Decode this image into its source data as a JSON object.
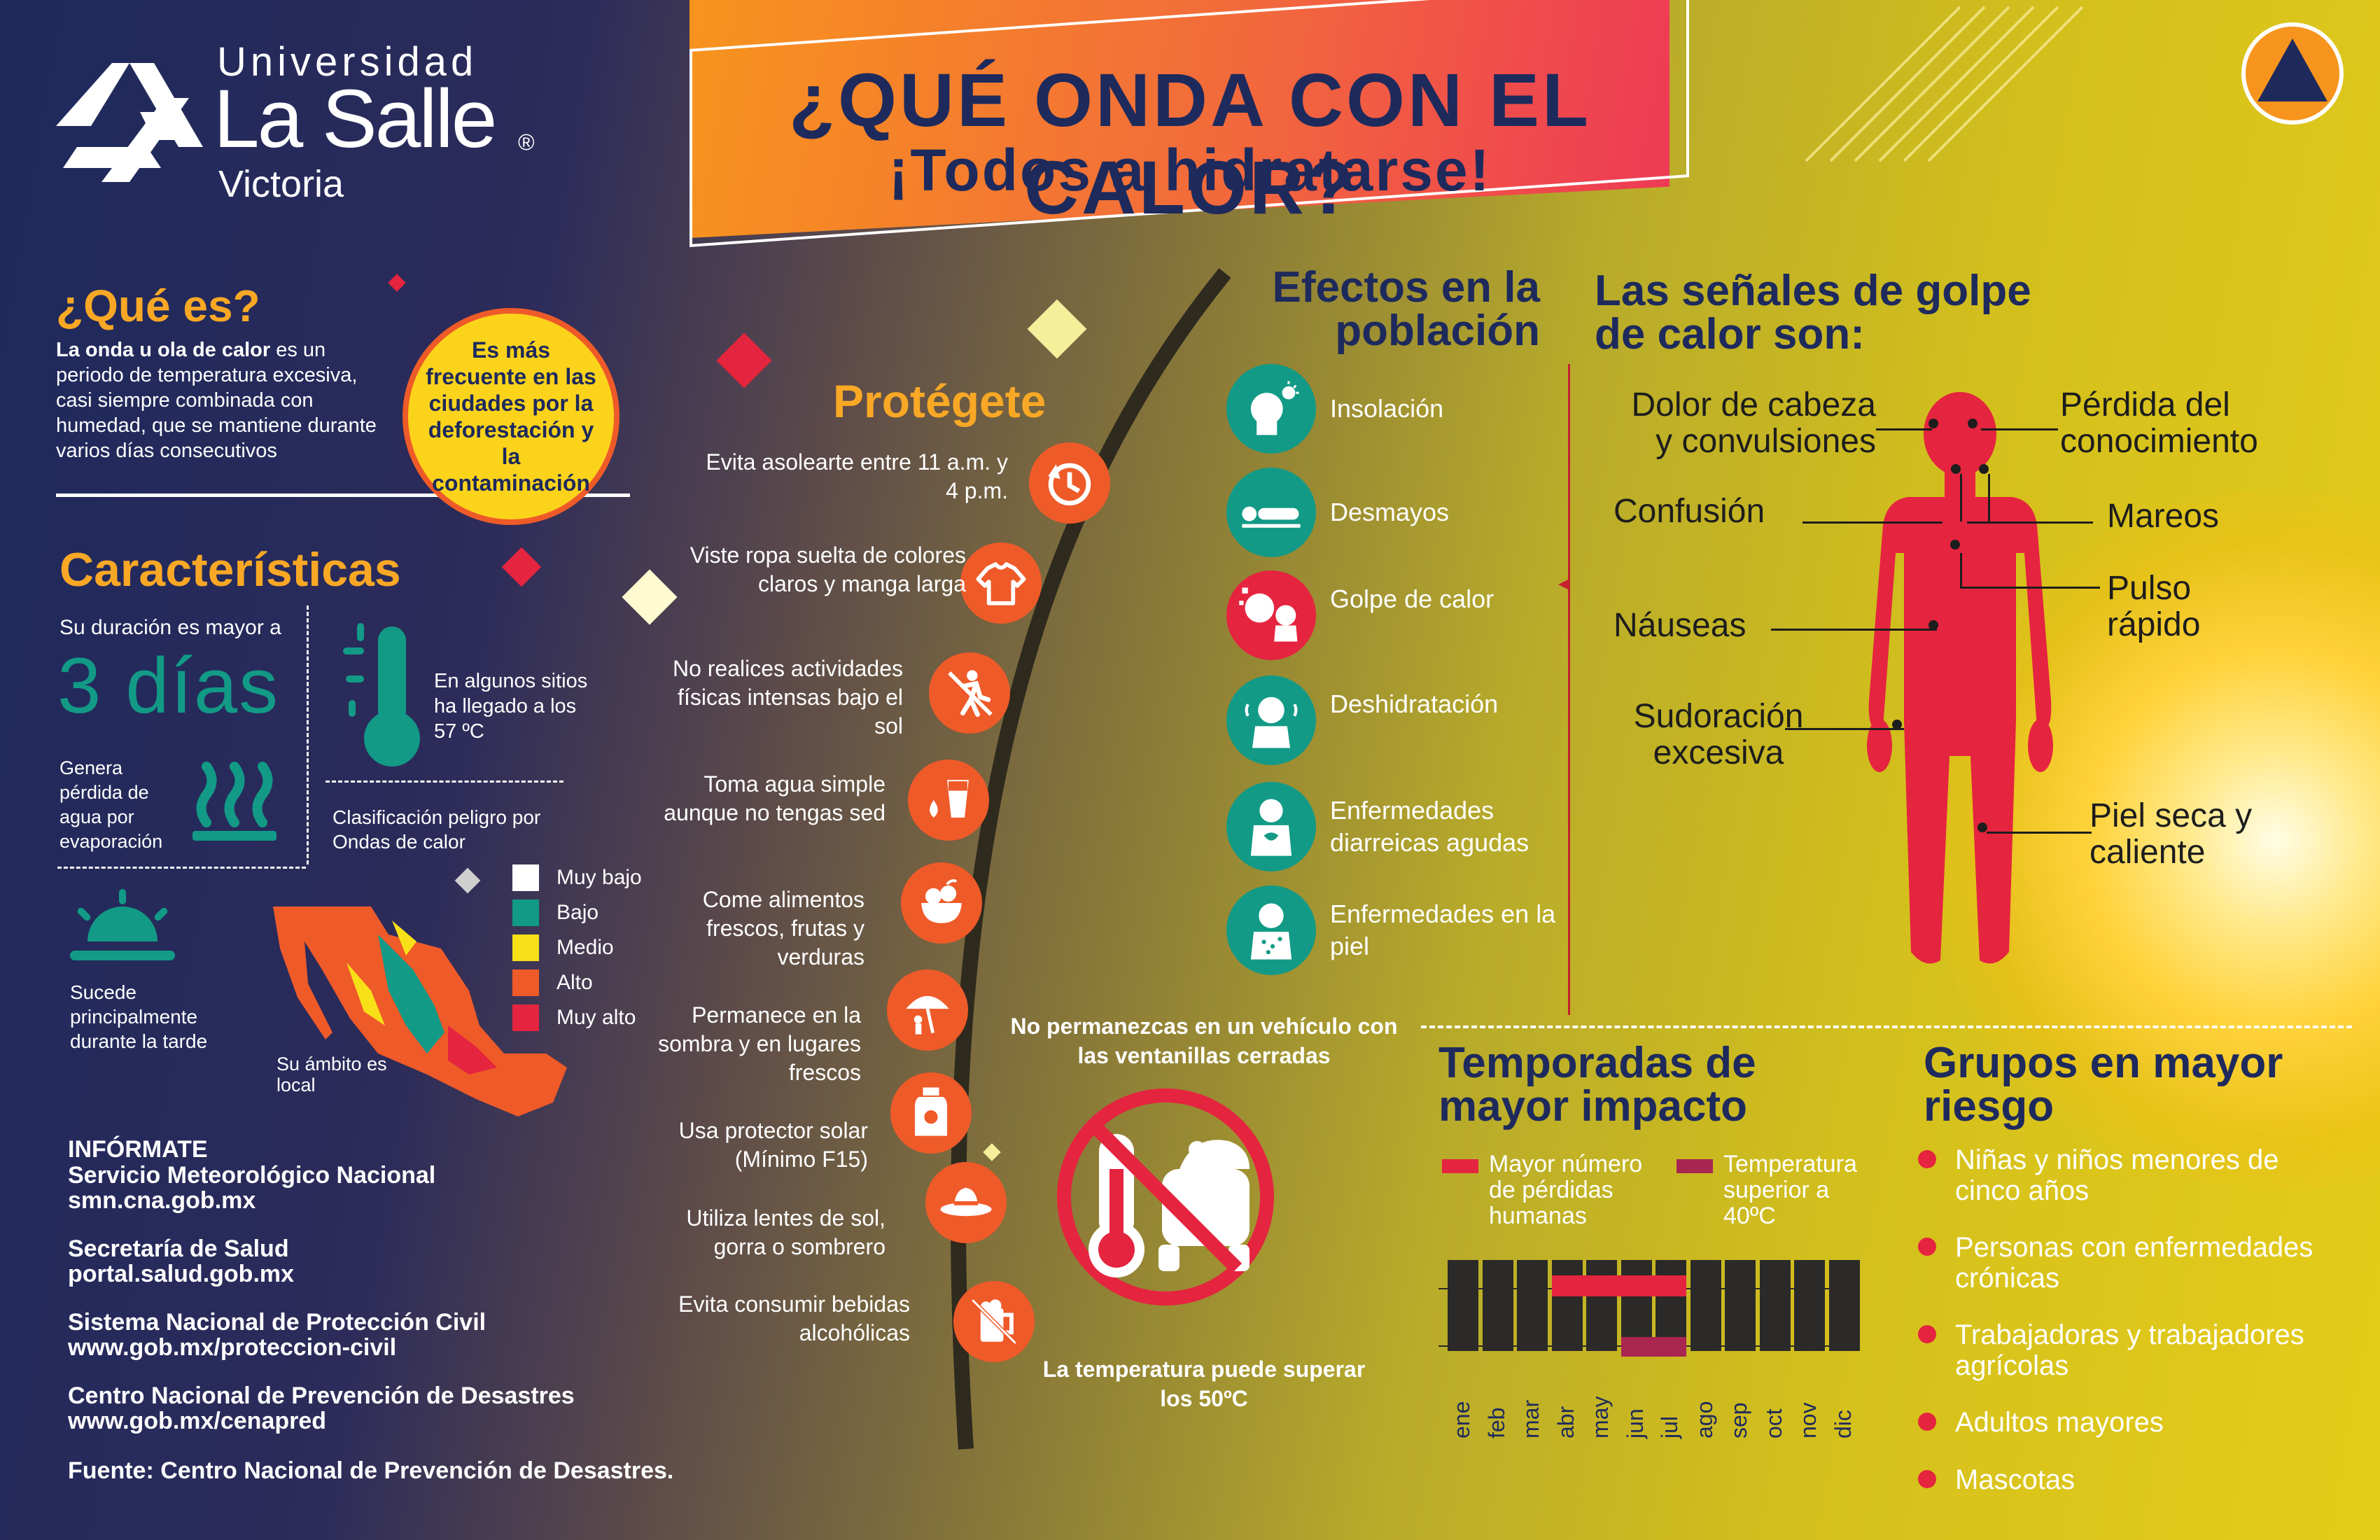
{
  "brand": {
    "line1": "Universidad",
    "line2": "La Salle",
    "reg": "®",
    "line3": "Victoria"
  },
  "title": {
    "main": "¿QUÉ ONDA CON EL CALOR?",
    "sub": "¡Todos a hidratarse!"
  },
  "que_es": {
    "heading": "¿Qué es?",
    "bold_lead": "La onda u ola de calor",
    "text": " es un periodo de temperatura excesiva, casi siempre combinada con humedad, que se mantiene durante varios días consecutivos",
    "bubble": "Es más frecuente en las ciudades por la deforestación y la contaminación"
  },
  "caracteristicas": {
    "heading": "Características",
    "duration_label": "Su duración es mayor a",
    "duration_value": "3 días",
    "temp_text": "En algunos sitios ha llegado a los 57 ºC",
    "water_text": "Genera pérdida de agua por evaporación",
    "class_text": "Clasificación peligro por Ondas de calor",
    "afternoon_text": "Sucede principalmente durante la tarde",
    "local_text": "Su ámbito es local"
  },
  "legend": [
    {
      "label": "Muy bajo",
      "color": "#ffffff"
    },
    {
      "label": "Bajo",
      "color": "#129a86"
    },
    {
      "label": "Medio",
      "color": "#f7e017"
    },
    {
      "label": "Alto",
      "color": "#ef5a29"
    },
    {
      "label": "Muy alto",
      "color": "#e5243f"
    }
  ],
  "informate": {
    "heading": "INFÓRMATE",
    "sources": [
      {
        "name": "Servicio Meteorológico Nacional",
        "url": "smn.cna.gob.mx"
      },
      {
        "name": "Secretaría de Salud",
        "url": "portal.salud.gob.mx"
      },
      {
        "name": "Sistema Nacional de Protección Civil",
        "url": "www.gob.mx/proteccion-civil"
      },
      {
        "name": "Centro Nacional de Prevención de Desastres",
        "url": "www.gob.mx/cenapred"
      }
    ],
    "fuente": "Fuente: Centro Nacional de Prevención de Desastres."
  },
  "protegete": {
    "heading": "Protégete",
    "items": [
      {
        "text": "Evita asolearte entre 11 a.m. y 4 p.m.",
        "icon": "clock-icon"
      },
      {
        "text": "Viste ropa suelta de colores claros y manga larga",
        "icon": "shirt-icon"
      },
      {
        "text": "No realices actividades físicas intensas bajo el sol",
        "icon": "no-exercise-icon"
      },
      {
        "text": "Toma agua simple aunque no tengas sed",
        "icon": "water-glass-icon"
      },
      {
        "text": "Come alimentos frescos, frutas y verduras",
        "icon": "fruit-bowl-icon"
      },
      {
        "text": "Permanece en la sombra y en lugares frescos",
        "icon": "umbrella-icon"
      },
      {
        "text": "Usa protector solar (Mínimo F15)",
        "icon": "sunscreen-icon"
      },
      {
        "text": "Utiliza lentes de sol, gorra o sombrero",
        "icon": "hat-icon"
      },
      {
        "text": "Evita consumir bebidas alcohólicas",
        "icon": "no-beer-icon"
      }
    ]
  },
  "vehiculo": {
    "warning": "No permanezcas en un vehículo con las ventanillas cerradas",
    "temp": "La temperatura puede superar los 50ºC"
  },
  "efectos": {
    "heading": "Efectos en la población",
    "items": [
      {
        "label": "Insolación",
        "icon": "sunstroke-icon"
      },
      {
        "label": "Desmayos",
        "icon": "fainting-icon"
      },
      {
        "label": "Golpe de calor",
        "icon": "heatstroke-icon"
      },
      {
        "label": "Deshidratación",
        "icon": "dehydration-icon"
      },
      {
        "label": "Enfermedades diarreicas agudas",
        "icon": "diarrhea-icon"
      },
      {
        "label": "Enfermedades en la piel",
        "icon": "skin-disease-icon"
      }
    ]
  },
  "senales": {
    "heading": "Las señales de golpe de calor son:",
    "labels": [
      "Dolor de cabeza y convulsiones",
      "Confusión",
      "Náuseas",
      "Sudoración excesiva",
      "Pérdida del conocimiento",
      "Mareos",
      "Pulso rápido",
      "Piel seca y caliente"
    ]
  },
  "temporadas": {
    "heading": "Temporadas de mayor impacto",
    "legend": [
      {
        "label": "Mayor número de pérdidas humanas",
        "color": "#e5243f"
      },
      {
        "label": "Temperatura superior a 40ºC",
        "color": "#a8264f"
      }
    ],
    "months": [
      "ene",
      "feb",
      "mar",
      "abr",
      "may",
      "jun",
      "jul",
      "ago",
      "sep",
      "oct",
      "nov",
      "dic"
    ],
    "human_loss_months": [
      "abr",
      "may",
      "jun",
      "jul"
    ],
    "over40_months": [
      "jun",
      "jul"
    ]
  },
  "grupos": {
    "heading": "Grupos en mayor riesgo",
    "items": [
      "Niñas y niños menores de cinco años",
      "Personas con enfermedades crónicas",
      "Trabajadoras y trabajadores agrícolas",
      "Adultos mayores",
      "Mascotas"
    ]
  }
}
